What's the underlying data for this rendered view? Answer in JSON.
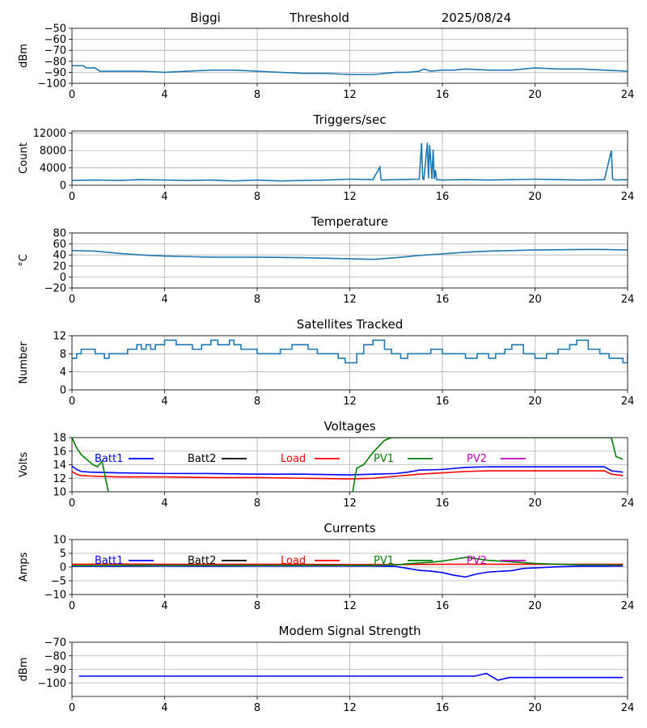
{
  "header": {
    "station": "Biggi",
    "mode": "Threshold",
    "date": "2025/08/24"
  },
  "colors": {
    "series": "#1f77b4",
    "batt1": "#0000ff",
    "batt2": "#000000",
    "load": "#ff0000",
    "pv1": "#008000",
    "pv2": "#bf00bf",
    "grid": "#b0b0b0"
  },
  "chart_data": [
    {
      "id": "signal",
      "type": "line",
      "title": "",
      "ylabel": "dBm",
      "xlim": [
        0,
        24
      ],
      "xticks": [
        0,
        4,
        8,
        12,
        16,
        20,
        24
      ],
      "ylim": [
        -100,
        -50
      ],
      "yticks": [
        -100,
        -90,
        -80,
        -70,
        -60,
        -50
      ],
      "ytick_labels": [
        "−100",
        "−90",
        "−80",
        "−70",
        "−60",
        "−50"
      ],
      "grid": true,
      "series": [
        {
          "color": "#1f77b4",
          "x": [
            0,
            0.5,
            0.6,
            1.0,
            1.2,
            2,
            3,
            4,
            5,
            6,
            7,
            8,
            9,
            10,
            11,
            12,
            13,
            14,
            14.5,
            15,
            15.2,
            15.5,
            16,
            16.5,
            17,
            18,
            19,
            20,
            21,
            22,
            23,
            24
          ],
          "y": [
            -84,
            -84,
            -86,
            -86,
            -89,
            -89,
            -89,
            -90,
            -89,
            -88,
            -88,
            -89,
            -90,
            -91,
            -91,
            -92,
            -92,
            -90,
            -90,
            -89,
            -87,
            -89,
            -88,
            -88,
            -87,
            -88,
            -88,
            -86,
            -87,
            -87,
            -88,
            -89
          ]
        }
      ]
    },
    {
      "id": "triggers",
      "type": "line",
      "title": "Triggers/sec",
      "ylabel": "Count",
      "xlim": [
        0,
        24
      ],
      "xticks": [
        0,
        4,
        8,
        12,
        16,
        20,
        24
      ],
      "ylim": [
        0,
        12500
      ],
      "yticks": [
        0,
        4000,
        8000,
        12000
      ],
      "ytick_labels": [
        "0",
        "4000",
        "8000",
        "12000"
      ],
      "grid": true,
      "series": [
        {
          "color": "#1f77b4",
          "x": [
            0,
            1,
            2,
            3,
            4,
            5,
            6,
            7,
            8,
            9,
            10,
            11,
            12,
            13,
            13.3,
            13.35,
            13.4,
            14,
            15,
            15.1,
            15.15,
            15.2,
            15.35,
            15.4,
            15.45,
            15.55,
            15.6,
            15.65,
            15.7,
            15.75,
            16,
            17,
            18,
            19,
            20,
            21,
            22,
            23,
            23.3,
            23.35,
            23.45,
            24
          ],
          "y": [
            1100,
            1200,
            1100,
            1300,
            1200,
            1100,
            1200,
            1000,
            1200,
            1000,
            1100,
            1200,
            1400,
            1300,
            4200,
            1300,
            1200,
            1300,
            1400,
            9700,
            1500,
            1300,
            9800,
            1600,
            9300,
            1500,
            8200,
            1400,
            3500,
            1300,
            1200,
            1300,
            1200,
            1300,
            1400,
            1300,
            1200,
            1300,
            8000,
            1500,
            1200,
            1300
          ]
        }
      ]
    },
    {
      "id": "temperature",
      "type": "line",
      "title": "Temperature",
      "ylabel": "°C",
      "xlim": [
        0,
        24
      ],
      "xticks": [
        0,
        4,
        8,
        12,
        16,
        20,
        24
      ],
      "ylim": [
        -20,
        80
      ],
      "yticks": [
        -20,
        0,
        20,
        40,
        60,
        80
      ],
      "ytick_labels": [
        "−20",
        "0",
        "20",
        "40",
        "60",
        "80"
      ],
      "grid": true,
      "series": [
        {
          "color": "#1f77b4",
          "x": [
            0,
            1,
            2,
            3,
            4,
            5,
            6,
            8,
            10,
            11,
            12,
            13,
            14,
            15,
            16,
            17,
            18,
            20,
            22,
            23,
            24
          ],
          "y": [
            48,
            47,
            43,
            40,
            38,
            37,
            36,
            36,
            35,
            34,
            33,
            32,
            35,
            39,
            42,
            45,
            47,
            49,
            50,
            50,
            49
          ]
        }
      ]
    },
    {
      "id": "satellites",
      "type": "line",
      "title": "Satellites Tracked",
      "ylabel": "Number",
      "xlim": [
        0,
        24
      ],
      "xticks": [
        0,
        4,
        8,
        12,
        16,
        20,
        24
      ],
      "ylim": [
        0,
        12
      ],
      "yticks": [
        0,
        4,
        8,
        12
      ],
      "ytick_labels": [
        "0",
        "4",
        "8",
        "12"
      ],
      "grid": true,
      "series": [
        {
          "color": "#1f77b4",
          "step": true,
          "x": [
            0,
            0.2,
            0.4,
            1.0,
            1.4,
            1.6,
            2.0,
            2.4,
            2.8,
            3.0,
            3.2,
            3.4,
            3.6,
            3.8,
            4.0,
            4.5,
            5.0,
            5.2,
            5.6,
            6.0,
            6.3,
            6.8,
            7.0,
            7.3,
            7.6,
            8.0,
            8.5,
            9.0,
            9.5,
            9.8,
            10.2,
            10.6,
            11.0,
            11.5,
            11.8,
            12.3,
            12.6,
            13.0,
            13.5,
            13.8,
            14.2,
            14.5,
            15.0,
            15.5,
            16.0,
            16.3,
            16.7,
            17.0,
            17.5,
            18.0,
            18.3,
            18.7,
            19.0,
            19.5,
            20.0,
            20.5,
            21.0,
            21.5,
            21.8,
            22.3,
            22.8,
            23.2,
            23.6,
            23.8,
            24
          ],
          "y": [
            7,
            8,
            9,
            8,
            7,
            8,
            8,
            9,
            10,
            9,
            10,
            9,
            10,
            10,
            11,
            10,
            10,
            9,
            10,
            11,
            10,
            11,
            10,
            9,
            9,
            8,
            8,
            9,
            10,
            10,
            9,
            8,
            8,
            7,
            6,
            8,
            10,
            11,
            9,
            8,
            7,
            8,
            8,
            9,
            8,
            8,
            8,
            7,
            8,
            7,
            8,
            9,
            10,
            8,
            7,
            8,
            9,
            10,
            11,
            9,
            8,
            7,
            7,
            6,
            8
          ]
        }
      ]
    },
    {
      "id": "voltages",
      "type": "line",
      "title": "Voltages",
      "ylabel": "Volts",
      "xlim": [
        0,
        24
      ],
      "xticks": [
        0,
        4,
        8,
        12,
        16,
        20,
        24
      ],
      "ylim": [
        10,
        18
      ],
      "yticks": [
        10,
        12,
        14,
        16,
        18
      ],
      "ytick_labels": [
        "10",
        "12",
        "14",
        "16",
        "18"
      ],
      "grid": true,
      "legend_placement": "top-inline",
      "series": [
        {
          "name": "Batt1",
          "color": "#0000ff",
          "x": [
            0,
            0.2,
            0.4,
            0.8,
            2,
            4,
            6,
            8,
            10,
            12,
            13,
            14,
            14.5,
            15,
            16,
            17,
            18,
            20,
            22,
            23,
            23.3,
            23.8
          ],
          "y": [
            13.8,
            13.3,
            13.0,
            12.9,
            12.8,
            12.7,
            12.7,
            12.6,
            12.6,
            12.5,
            12.6,
            12.7,
            12.9,
            13.2,
            13.3,
            13.6,
            13.7,
            13.7,
            13.7,
            13.7,
            13.1,
            12.9
          ]
        },
        {
          "name": "Batt2",
          "color": "#000000",
          "x": [],
          "y": []
        },
        {
          "name": "Load",
          "color": "#ff0000",
          "x": [
            0,
            0.2,
            0.4,
            1,
            2,
            4,
            6,
            8,
            10,
            12,
            13,
            14,
            15,
            16,
            17,
            18,
            20,
            22,
            23,
            23.3,
            23.8
          ],
          "y": [
            13.0,
            12.6,
            12.4,
            12.3,
            12.2,
            12.2,
            12.1,
            12.1,
            12.0,
            11.9,
            12.0,
            12.3,
            12.6,
            12.8,
            13.0,
            13.1,
            13.1,
            13.1,
            13.1,
            12.6,
            12.4
          ]
        },
        {
          "name": "PV1",
          "color": "#008000",
          "x": [
            0,
            0.2,
            0.4,
            0.6,
            0.9,
            1.1,
            1.3,
            1.6,
            12.1,
            12.3,
            12.6,
            13.0,
            13.5,
            13.8,
            23.3,
            23.5,
            23.8
          ],
          "y": [
            18,
            16.5,
            15.5,
            14.9,
            14.0,
            13.7,
            14.5,
            9.5,
            9.5,
            13.5,
            14.0,
            15.8,
            17.6,
            18,
            18,
            15.2,
            14.8
          ]
        },
        {
          "name": "PV2",
          "color": "#bf00bf",
          "x": [],
          "y": []
        }
      ]
    },
    {
      "id": "currents",
      "type": "line",
      "title": "Currents",
      "ylabel": "Amps",
      "xlim": [
        0,
        24
      ],
      "xticks": [
        0,
        4,
        8,
        12,
        16,
        20,
        24
      ],
      "ylim": [
        -10,
        10
      ],
      "yticks": [
        -10,
        -5,
        0,
        5,
        10
      ],
      "ytick_labels": [
        "−10",
        "−5",
        "0",
        "5",
        "10"
      ],
      "grid": true,
      "legend_placement": "top-inline",
      "series": [
        {
          "name": "Batt1",
          "color": "#0000ff",
          "x": [
            0,
            2,
            4,
            6,
            8,
            10,
            12,
            13,
            14,
            14.5,
            15,
            15.5,
            16,
            16.5,
            17,
            17.5,
            18,
            19,
            19.5,
            20,
            21,
            22,
            23,
            23.8
          ],
          "y": [
            0.3,
            0.3,
            0.4,
            0.3,
            0.4,
            0.4,
            0.4,
            0.4,
            0.2,
            -0.5,
            -1.2,
            -1.5,
            -2.0,
            -3.0,
            -3.6,
            -2.5,
            -1.8,
            -1.3,
            -0.5,
            -0.3,
            0.1,
            0.3,
            0.3,
            0.4
          ]
        },
        {
          "name": "Batt2",
          "color": "#000000",
          "x": [],
          "y": []
        },
        {
          "name": "Load",
          "color": "#ff0000",
          "x": [
            0,
            2,
            4,
            6,
            8,
            10,
            12,
            14,
            16,
            18,
            20,
            22,
            23.8
          ],
          "y": [
            1.0,
            1.1,
            1.0,
            1.0,
            1.0,
            1.0,
            0.9,
            0.9,
            1.0,
            1.0,
            1.0,
            1.0,
            1.0
          ]
        },
        {
          "name": "PV1",
          "color": "#008000",
          "x": [
            0,
            2,
            4,
            6,
            8,
            10,
            12,
            13,
            14,
            14.5,
            15,
            15.5,
            16,
            16.5,
            17,
            17.5,
            18,
            19,
            20,
            21,
            22,
            23,
            23.8
          ],
          "y": [
            0.5,
            0.6,
            0.6,
            0.6,
            0.6,
            0.6,
            0.6,
            0.6,
            0.8,
            1.2,
            1.5,
            1.7,
            2.2,
            2.8,
            3.5,
            3.0,
            2.4,
            1.9,
            1.3,
            1.0,
            0.8,
            0.8,
            0.7
          ]
        },
        {
          "name": "PV2",
          "color": "#bf00bf",
          "x": [],
          "y": []
        }
      ]
    },
    {
      "id": "modem",
      "type": "line",
      "title": "Modem Signal Strength",
      "ylabel": "dBm",
      "xlim": [
        0,
        24
      ],
      "xticks": [
        0,
        4,
        8,
        12,
        16,
        20,
        24
      ],
      "ylim": [
        -110,
        -70
      ],
      "yticks": [
        -100,
        -90,
        -80,
        -70
      ],
      "ytick_labels": [
        "−100",
        "−90",
        "−80",
        "−70"
      ],
      "grid": true,
      "series": [
        {
          "color": "#0000ff",
          "x": [
            0.3,
            4,
            8,
            12,
            16,
            17.4,
            17.9,
            18.4,
            18.9,
            20,
            22,
            23.8
          ],
          "y": [
            -95,
            -95,
            -95,
            -95,
            -95,
            -95,
            -93,
            -98,
            -96,
            -96,
            -96,
            -96
          ]
        }
      ]
    }
  ]
}
